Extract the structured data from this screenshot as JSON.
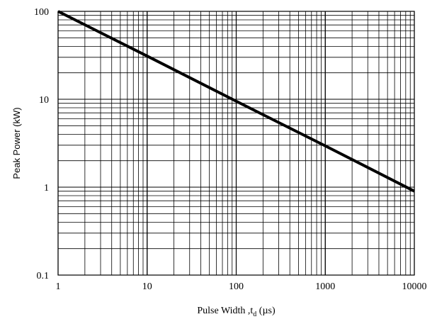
{
  "chart_data": {
    "type": "line",
    "xscale": "log",
    "yscale": "log",
    "xlim": [
      1,
      10000
    ],
    "ylim": [
      0.1,
      100
    ],
    "grid": true,
    "xlabel": "Pulse Width ,t",
    "xlabel_sub": "d",
    "xlabel_unit": " (µs)",
    "ylabel": "Peak Power (kW)",
    "x_ticks": [
      1,
      10,
      100,
      1000,
      10000
    ],
    "x_tick_labels": [
      "1",
      "10",
      "100",
      "1000",
      "10000"
    ],
    "y_ticks": [
      0.1,
      1,
      10,
      100
    ],
    "y_tick_labels": [
      "0.1",
      "1",
      "10",
      "100"
    ],
    "line_color": "#000000",
    "series": [
      {
        "x": [
          1,
          10,
          100,
          1000,
          10000
        ],
        "y": [
          100,
          31,
          9.5,
          2.95,
          0.9
        ]
      }
    ]
  }
}
